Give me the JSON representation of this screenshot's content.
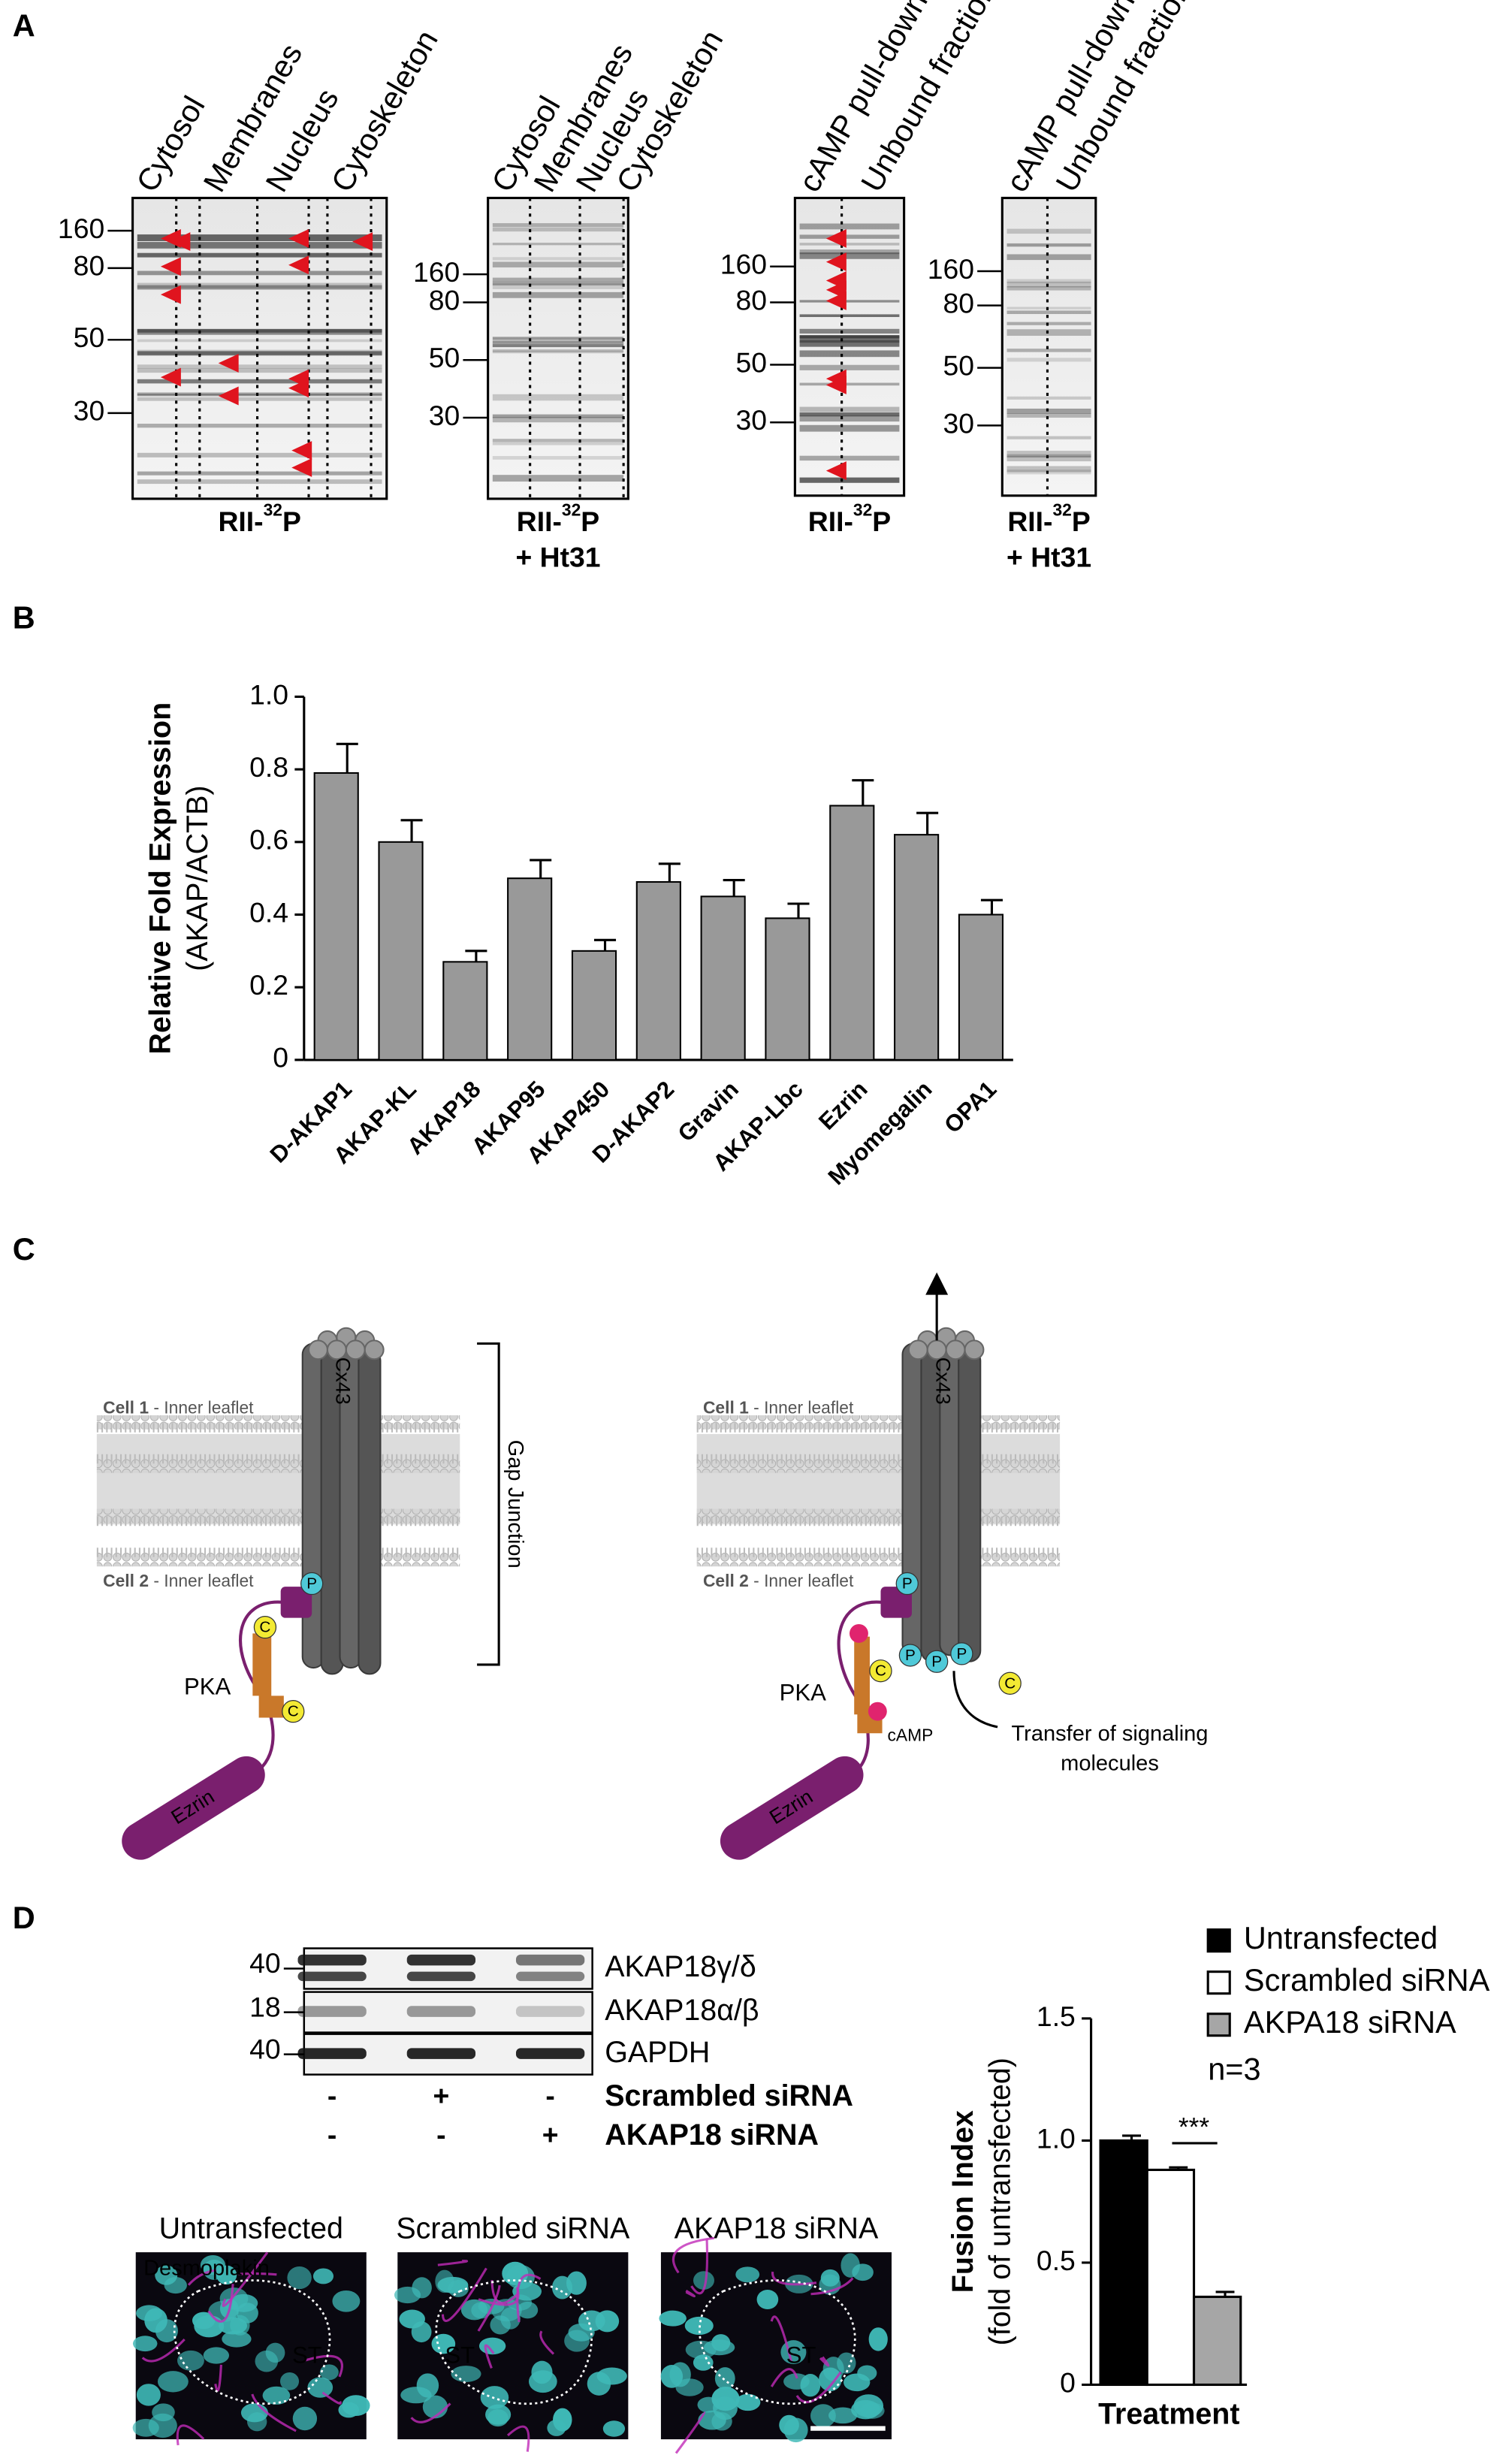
{
  "panel_labels": [
    "A",
    "B",
    "C",
    "D"
  ],
  "panel_a": {
    "blots": [
      {
        "lanes": [
          "Cytosol",
          "Membranes",
          "Nucleus",
          "Cytoskeleton"
        ],
        "markers": [
          160,
          80,
          50,
          30
        ],
        "caption": {
          "prefix": "RII-",
          "isotope": "32",
          "suffix": "P"
        }
      },
      {
        "lanes": [
          "Cytosol",
          "Membranes",
          "Nucleus",
          "Cytoskeleton"
        ],
        "markers": [
          160,
          80,
          50,
          30
        ],
        "caption": {
          "prefix": "RII-",
          "isotope": "32",
          "suffix": "P"
        },
        "treatment": "+ Ht31"
      },
      {
        "lanes": [
          "cAMP pull-down",
          "Unbound fraction"
        ],
        "markers": [
          160,
          80,
          50,
          30
        ],
        "caption": {
          "prefix": "RII-",
          "isotope": "32",
          "suffix": "P"
        }
      },
      {
        "lanes": [
          "cAMP pull-down",
          "Unbound fraction"
        ],
        "markers": [
          160,
          80,
          50,
          30
        ],
        "caption": {
          "prefix": "RII-",
          "isotope": "32",
          "suffix": "P"
        },
        "treatment": "+ Ht31"
      }
    ]
  },
  "chart_data": [
    {
      "type": "bar",
      "y_label": [
        "Relative Fold Expression",
        "(AKAP/ACTB)"
      ],
      "categories": [
        "D-AKAP1",
        "AKAP-KL",
        "AKAP18",
        "AKAP95",
        "AKAP450",
        "D-AKAP2",
        "Gravin",
        "AKAP-Lbc",
        "Ezrin",
        "Myomegalin",
        "OPA1"
      ],
      "values": [
        0.79,
        0.6,
        0.27,
        0.5,
        0.3,
        0.49,
        0.45,
        0.39,
        0.7,
        0.62,
        0.4
      ],
      "errors": [
        0.08,
        0.06,
        0.03,
        0.05,
        0.03,
        0.05,
        0.045,
        0.04,
        0.07,
        0.06,
        0.04
      ],
      "color": "#999999",
      "ylim": [
        0,
        1
      ],
      "yticks": [
        0,
        0.2,
        0.4,
        0.6,
        0.8,
        {
          "value": 1,
          "label": "1.0"
        }
      ]
    },
    {
      "type": "bar",
      "y_label": [
        "Fusion Index",
        "(fold of untransfected)"
      ],
      "x_label": "Treatment",
      "series": [
        {
          "name": "Untransfected",
          "color": "#000000",
          "values": [
            1.0
          ],
          "errors": [
            0.02
          ]
        },
        {
          "name": "Scrambled siRNA",
          "color": "#ffffff",
          "values": [
            0.88
          ],
          "errors": [
            0.01
          ]
        },
        {
          "name": "AKPA18 siRNA",
          "color": "#a6a6a6",
          "values": [
            0.36
          ],
          "errors": [
            0.02
          ]
        }
      ],
      "ylim": [
        0,
        1.5
      ],
      "yticks": [
        0,
        0.5,
        {
          "value": 1,
          "label": "1.0"
        },
        1.5
      ],
      "annotations": [
        "***",
        "n=3"
      ]
    }
  ],
  "panel_c": {
    "cell1": "Cell 1",
    "cell2": "Cell 2",
    "leaflet": " - Inner leaflet",
    "channel": "Cx43",
    "bracket": "Gap Junction",
    "pka": "PKA",
    "anchor": "Ezrin",
    "catalytic": "C",
    "phospho": "P",
    "camp": "cAMP",
    "transfer": [
      "Transfer of signaling",
      "molecules"
    ]
  },
  "panel_d": {
    "blot_markers": [
      40,
      18,
      40
    ],
    "blot_rows": [
      "AKAP18γ/δ",
      "AKAP18α/β",
      "GAPDH"
    ],
    "conditions": [
      {
        "signs": [
          "-",
          "+",
          "-"
        ],
        "name": "Scrambled siRNA"
      },
      {
        "signs": [
          "-",
          "-",
          "+"
        ],
        "name": "AKAP18 siRNA"
      }
    ],
    "images": [
      "Untransfected",
      "Scrambled siRNA",
      "AKAP18 siRNA"
    ],
    "stain": "Desmoplakin",
    "region": "ST"
  }
}
